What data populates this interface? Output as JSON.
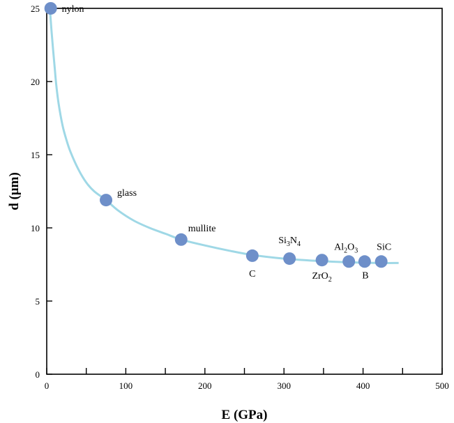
{
  "chart_data": {
    "type": "scatter",
    "title": "",
    "xlabel": "E (GPa)",
    "ylabel": "d (μm)",
    "xlim": [
      0,
      500
    ],
    "ylim": [
      0,
      25
    ],
    "xticks": [
      0,
      100,
      200,
      300,
      400,
      500
    ],
    "yticks": [
      0,
      5,
      10,
      15,
      20,
      25
    ],
    "grid": false,
    "colors": {
      "points": "#6e8fc9",
      "curve": "#9fd8e6"
    },
    "points": [
      {
        "label": "nylon",
        "sub": "",
        "tail": "",
        "x": 5,
        "y": 25
      },
      {
        "label": "glass",
        "sub": "",
        "tail": "",
        "x": 75,
        "y": 11.9
      },
      {
        "label": "mullite",
        "sub": "",
        "tail": "",
        "x": 170,
        "y": 9.2
      },
      {
        "label": "C",
        "sub": "",
        "tail": "",
        "x": 260,
        "y": 8.1
      },
      {
        "label": "Si",
        "sub": "3",
        "tail": "N",
        "sub2": "4",
        "x": 307,
        "y": 7.9
      },
      {
        "label": "ZrO",
        "sub": "2",
        "tail": "",
        "x": 348,
        "y": 7.8
      },
      {
        "label": "Al",
        "sub": "2",
        "tail": "O",
        "sub2": "3",
        "x": 382,
        "y": 7.7
      },
      {
        "label": "B",
        "sub": "",
        "tail": "",
        "x": 402,
        "y": 7.7
      },
      {
        "label": "SiC",
        "sub": "",
        "tail": "",
        "x": 423,
        "y": 7.7
      }
    ],
    "curve": {
      "x": [
        4,
        6,
        8,
        10,
        12,
        15,
        20,
        25,
        30,
        40,
        50,
        60,
        75,
        90,
        110,
        130,
        150,
        170,
        200,
        230,
        260,
        300,
        340,
        380,
        420,
        445
      ],
      "y": [
        25,
        23.5,
        22.2,
        21.0,
        19.8,
        18.5,
        17.0,
        16.0,
        15.2,
        14.0,
        13.1,
        12.5,
        11.9,
        11.2,
        10.5,
        10.0,
        9.6,
        9.2,
        8.8,
        8.45,
        8.15,
        7.9,
        7.75,
        7.65,
        7.6,
        7.6
      ]
    }
  }
}
